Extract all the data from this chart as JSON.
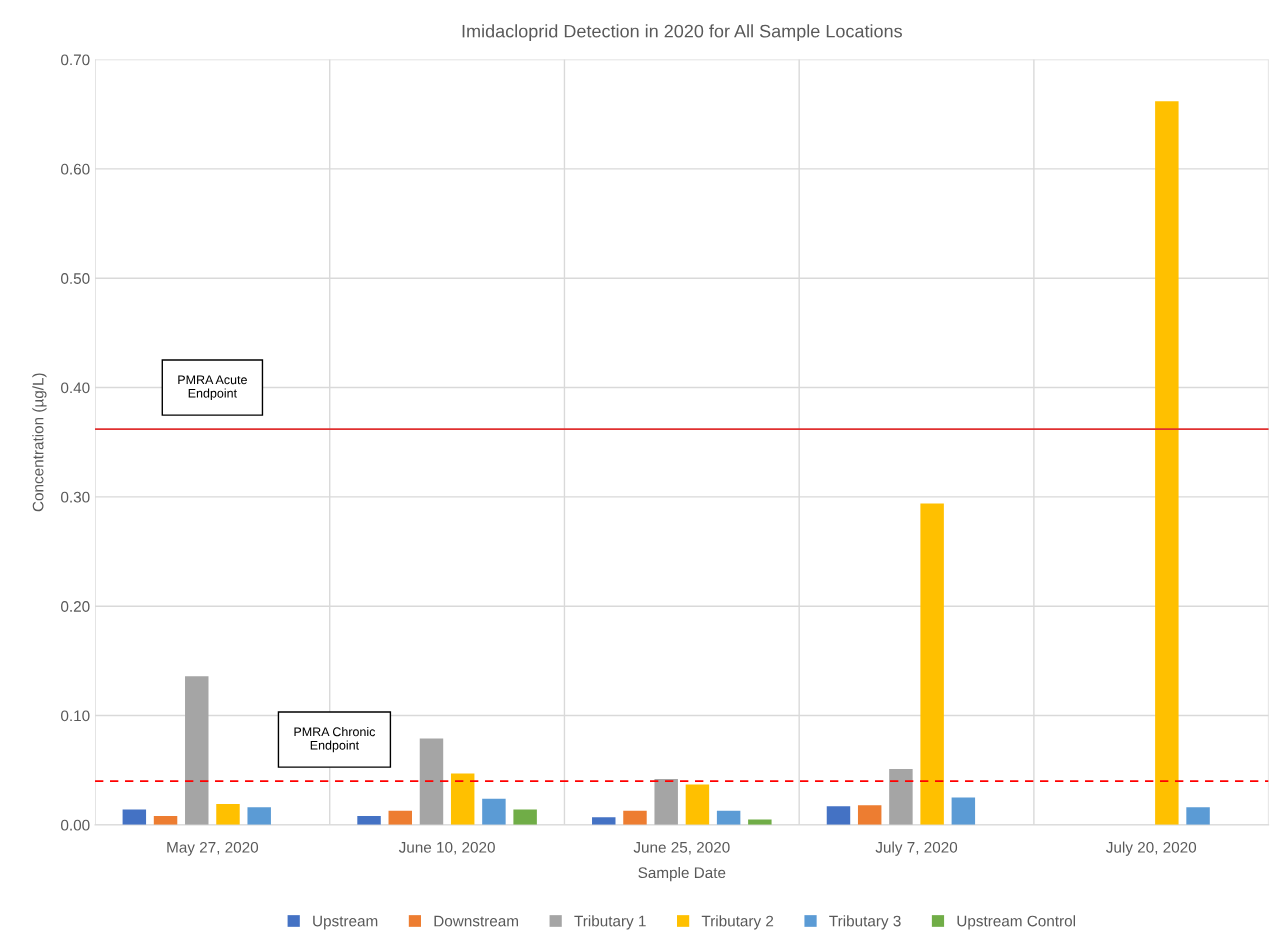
{
  "chart_data": {
    "type": "bar",
    "title": "Imidacloprid Detection in 2020 for All Sample Locations",
    "xlabel": "Sample Date",
    "ylabel": "Concentration (µg/L)",
    "categories": [
      "May 27, 2020",
      "June 10, 2020",
      "June 25, 2020",
      "July 7, 2020",
      "July 20, 2020"
    ],
    "series": [
      {
        "name": "Upstream",
        "color": "#4472c4",
        "values": [
          0.014,
          0.008,
          0.007,
          0.017,
          null
        ]
      },
      {
        "name": "Downstream",
        "color": "#ed7d31",
        "values": [
          0.008,
          0.013,
          0.013,
          0.018,
          null
        ]
      },
      {
        "name": "Tributary 1",
        "color": "#a5a5a5",
        "values": [
          0.136,
          0.079,
          0.042,
          0.051,
          null
        ]
      },
      {
        "name": "Tributary 2",
        "color": "#ffc000",
        "values": [
          0.019,
          0.047,
          0.037,
          0.294,
          0.662
        ]
      },
      {
        "name": "Tributary 3",
        "color": "#5b9bd5",
        "values": [
          0.016,
          0.024,
          0.013,
          0.025,
          0.016
        ]
      },
      {
        "name": "Upstream Control",
        "color": "#70ad47",
        "values": [
          null,
          0.014,
          0.005,
          null,
          null
        ]
      }
    ],
    "ylim": [
      0,
      0.7
    ],
    "yticks": [
      {
        "value": 0,
        "label": "0.00"
      },
      {
        "value": 0.1,
        "label": "0.10"
      },
      {
        "value": 0.2,
        "label": "0.20"
      },
      {
        "value": 0.3,
        "label": "0.30"
      },
      {
        "value": 0.4,
        "label": "0.40"
      },
      {
        "value": 0.5,
        "label": "0.50"
      },
      {
        "value": 0.6,
        "label": "0.60"
      },
      {
        "value": 0.7,
        "label": "0.70"
      }
    ],
    "ref_lines": [
      {
        "axis": "y",
        "value": 0.362,
        "label": "PMRA Acute\nEndpoint",
        "color": "#e03030",
        "line_style": "solid"
      },
      {
        "axis": "y",
        "value": 0.04,
        "label": "PMRA Chronic\nEndpoint",
        "color": "#ff0000",
        "line_style": "dashed"
      }
    ],
    "grid": true,
    "legend": "bottom"
  }
}
